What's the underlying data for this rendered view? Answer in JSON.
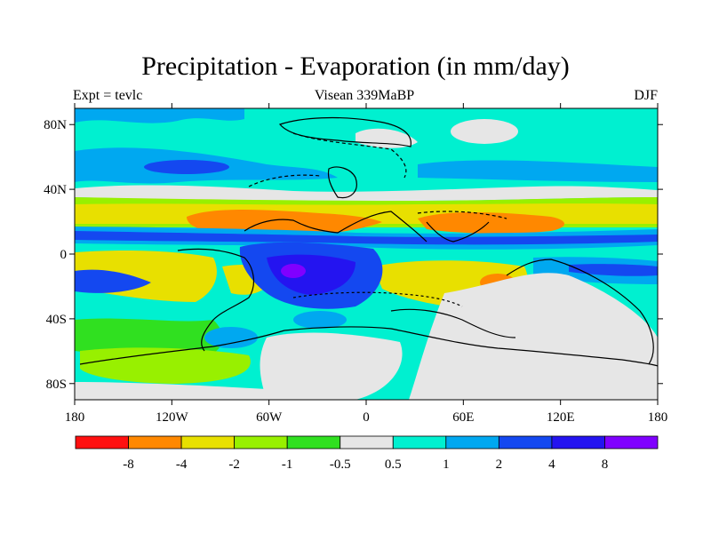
{
  "title": "Precipitation - Evaporation (in mm/day)",
  "subtitle_left": "Expt = tevlc",
  "subtitle_center": "Visean 339MaBP",
  "subtitle_right": "DJF",
  "lat_ticks": [
    {
      "lat": 80,
      "label": "80N"
    },
    {
      "lat": 40,
      "label": "40N"
    },
    {
      "lat": 0,
      "label": "0"
    },
    {
      "lat": -40,
      "label": "40S"
    },
    {
      "lat": -80,
      "label": "80S"
    }
  ],
  "lon_ticks": [
    {
      "lon": -180,
      "label": "180"
    },
    {
      "lon": -120,
      "label": "120W"
    },
    {
      "lon": -60,
      "label": "60W"
    },
    {
      "lon": 0,
      "label": "0"
    },
    {
      "lon": 60,
      "label": "60E"
    },
    {
      "lon": 120,
      "label": "120E"
    },
    {
      "lon": 180,
      "label": "180"
    }
  ],
  "colorbar": {
    "colors": [
      "#ff1010",
      "#ff8800",
      "#e8e000",
      "#98f000",
      "#30e020",
      "#e6e6e6",
      "#00f0d0",
      "#00a8f0",
      "#1448f0",
      "#2414f0",
      "#8000ff"
    ],
    "labels": [
      "-8",
      "-4",
      "-2",
      "-1",
      "-0.5",
      "0.5",
      "1",
      "2",
      "4",
      "8"
    ]
  },
  "palette": {
    "background_band": "#00f0d0",
    "ocean_dry": "#e6e6e6"
  }
}
